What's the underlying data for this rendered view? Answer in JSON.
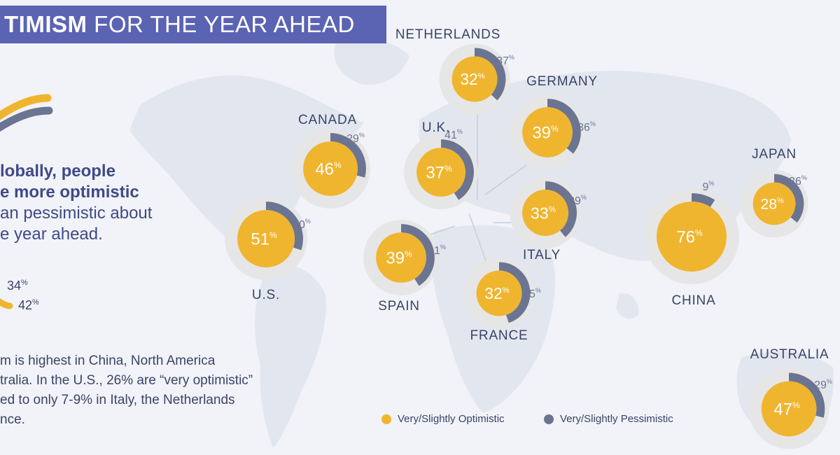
{
  "title": {
    "bold": "TIMISM",
    "rest": "FOR THE YEAR AHEAD"
  },
  "headline": {
    "line1": "lobally, people",
    "line2": "e more optimistic",
    "line3": "an pessimistic about",
    "line4": "e year ahead."
  },
  "global": {
    "pessimistic": "34",
    "optimistic": "42",
    "pct_sign": "%"
  },
  "footnote": {
    "line1": "m is highest in China, North America",
    "line2": "tralia. In the U.S., 26% are “very optimistic”",
    "line3": "ed to only 7-9% in Italy, the Netherlands",
    "line4": "nce."
  },
  "legend": {
    "optimistic": "Very/Slightly Optimistic",
    "pessimistic": "Very/Slightly Pessimistic"
  },
  "colors": {
    "optimistic": "#f0b52e",
    "pessimistic": "#6b7591",
    "track": "#e6e6e6",
    "label": "#3a4466",
    "pess_text": "#6b7591",
    "title_bg": "#5b63b3",
    "map": "#e2e6ef"
  },
  "chart_data": {
    "type": "pie",
    "unit": "%",
    "series_names": [
      "Very/Slightly Optimistic",
      "Very/Slightly Pessimistic"
    ],
    "countries": [
      {
        "name": "NETHERLANDS",
        "optimistic": 32,
        "pessimistic": 37
      },
      {
        "name": "GERMANY",
        "optimistic": 39,
        "pessimistic": 36
      },
      {
        "name": "CANADA",
        "optimistic": 46,
        "pessimistic": 29
      },
      {
        "name": "U.K.",
        "optimistic": 37,
        "pessimistic": 41
      },
      {
        "name": "JAPAN",
        "optimistic": 28,
        "pessimistic": 36
      },
      {
        "name": "U.S.",
        "optimistic": 51,
        "pessimistic": 30
      },
      {
        "name": "ITALY",
        "optimistic": 33,
        "pessimistic": 39
      },
      {
        "name": "CHINA",
        "optimistic": 76,
        "pessimistic": 9
      },
      {
        "name": "SPAIN",
        "optimistic": 39,
        "pessimistic": 41
      },
      {
        "name": "FRANCE",
        "optimistic": 32,
        "pessimistic": 45
      },
      {
        "name": "AUSTRALIA",
        "optimistic": 47,
        "pessimistic": 29
      }
    ]
  }
}
